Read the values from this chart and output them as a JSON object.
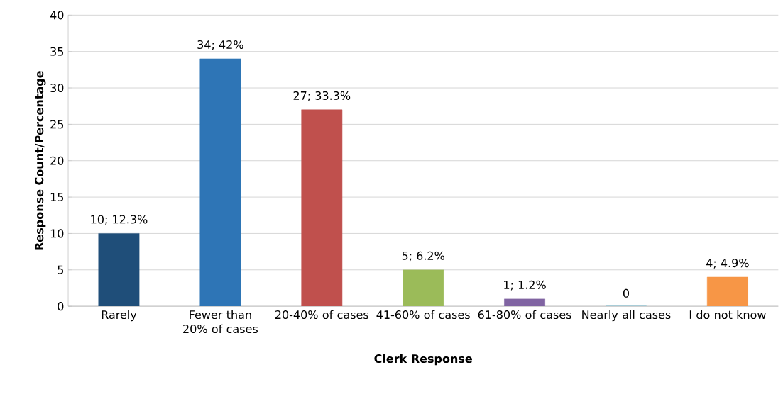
{
  "chart_data": {
    "type": "bar",
    "xlabel": "Clerk Response",
    "ylabel": "Response Count/Percentage",
    "categories": [
      "Rarely",
      "Fewer than 20% of cases",
      "20-40% of cases",
      "41-60% of cases",
      "61-80% of cases",
      "Nearly all cases",
      "I do not know"
    ],
    "values": [
      10,
      34,
      27,
      5,
      1,
      0,
      4
    ],
    "colors": [
      "#1f4e79",
      "#2e75b6",
      "#c0504d",
      "#9bbb59",
      "#8064a2",
      "#4bacc6",
      "#f79646"
    ],
    "value_labels": [
      "10; 12.3%",
      "34; 42%",
      "27; 33.3%",
      "5; 6.2%",
      "1; 1.2%",
      "0",
      "4; 4.9%"
    ],
    "ylim": [
      0,
      40
    ],
    "yticks": [
      0,
      5,
      10,
      15,
      20,
      25,
      30,
      35,
      40
    ],
    "grid": "y"
  }
}
